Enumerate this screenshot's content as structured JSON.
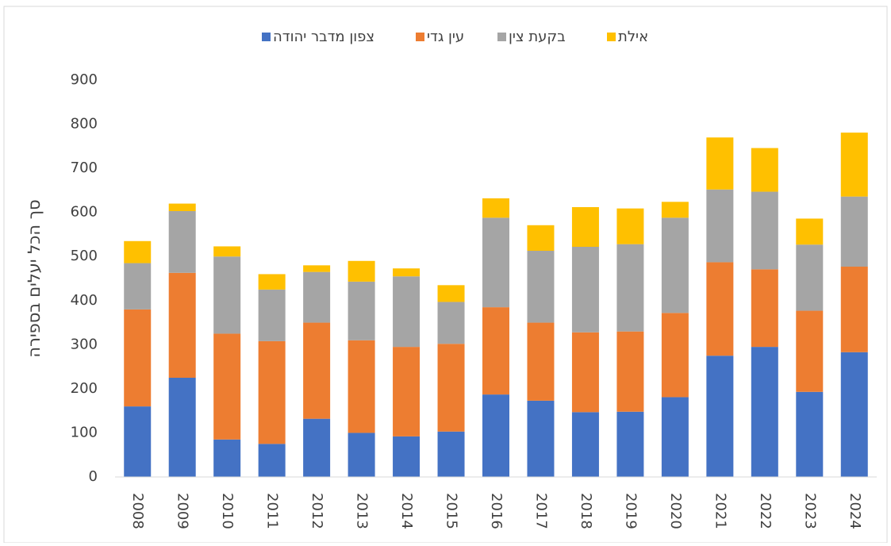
{
  "chart_data": {
    "type": "stacked-bar",
    "y_label": "סך הכל יעלים בספירה",
    "categories": [
      "2008",
      "2009",
      "2010",
      "2011",
      "2012",
      "2013",
      "2014",
      "2015",
      "2016",
      "2017",
      "2018",
      "2019",
      "2020",
      "2021",
      "2022",
      "2023",
      "2024"
    ],
    "series": [
      {
        "name": "צפון מדבר יהודה",
        "color": "#4472c4",
        "values": [
          160,
          225,
          85,
          75,
          132,
          100,
          92,
          103,
          187,
          173,
          147,
          148,
          181,
          275,
          295,
          193,
          283
        ]
      },
      {
        "name": "עין גדי",
        "color": "#ed7d31",
        "values": [
          220,
          238,
          240,
          233,
          218,
          210,
          203,
          199,
          198,
          177,
          181,
          182,
          191,
          212,
          176,
          184,
          194
        ]
      },
      {
        "name": "בקעת צין",
        "color": "#a5a5a5",
        "values": [
          105,
          140,
          175,
          117,
          115,
          133,
          160,
          95,
          203,
          163,
          194,
          198,
          216,
          165,
          176,
          150,
          159
        ]
      },
      {
        "name": "אילת",
        "color": "#ffc000",
        "values": [
          50,
          17,
          23,
          35,
          15,
          47,
          18,
          38,
          44,
          58,
          90,
          81,
          36,
          118,
          99,
          59,
          145
        ]
      }
    ],
    "ylim": [
      0,
      900
    ],
    "yticks": [
      0,
      100,
      200,
      300,
      400,
      500,
      600,
      700,
      800,
      900
    ],
    "legend": "top",
    "grid": false
  }
}
